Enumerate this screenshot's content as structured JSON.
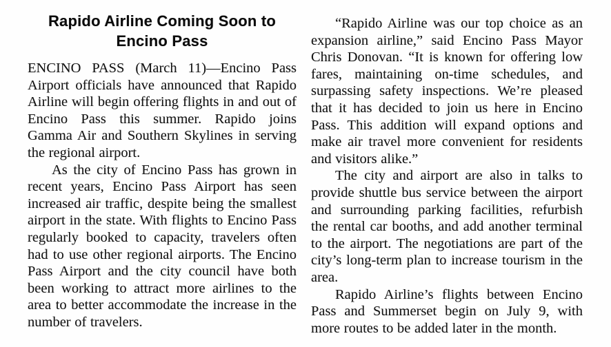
{
  "article": {
    "headline": "Rapido Airline Coming Soon to Encino Pass",
    "left_column": {
      "paragraphs": [
        "ENCINO PASS (March 11)—Encino Pass Airport officials have announced that Rapido Airline will begin offering flights in and out of Encino Pass this summer. Rapido joins Gamma Air and Southern Skylines in serving the regional airport.",
        "As the city of Encino Pass has grown in recent years, Encino Pass Airport has seen increased air traffic, despite being the smallest airport in the state. With flights to Encino Pass regularly booked to capacity, travelers often had to use other regional airports. The Encino Pass Airport and the city council have both been working to attract more airlines to the area to better accommodate the increase in the number of travelers."
      ]
    },
    "right_column": {
      "paragraphs": [
        "“Rapido Airline was our top choice as an expansion airline,” said Encino Pass Mayor Chris Donovan. “It is known for offering low fares, maintaining on-time schedules, and surpassing safety inspections. We’re pleased that it has decided to join us here in Encino Pass. This addition will expand options and make air travel more convenient for residents and visitors alike.”",
        "The city and airport are also in talks to provide shuttle bus service between the airport and surrounding parking facilities, refurbish the rental car booths, and add another terminal to the airport. The negotiations are part of the city’s long-term plan to increase tourism in the area.",
        "Rapido Airline’s flights between Encino Pass and Summerset begin on July 9, with more routes to be added later in the month."
      ]
    }
  }
}
